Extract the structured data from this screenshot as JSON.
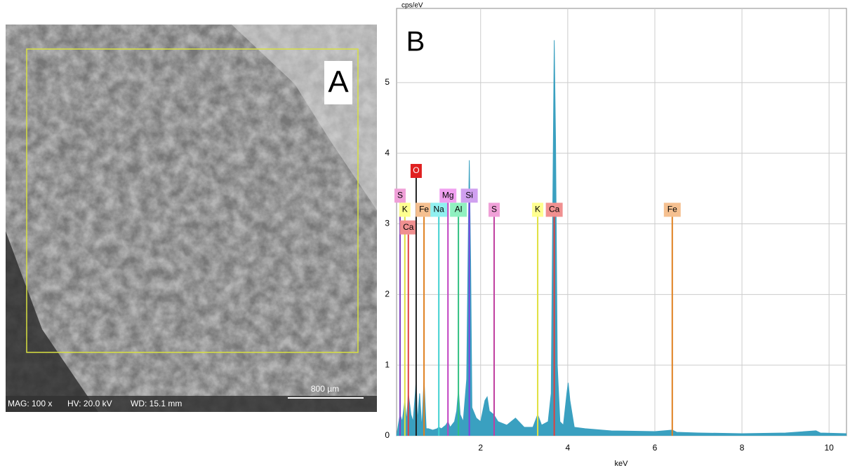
{
  "panel_a": {
    "label": "A",
    "mag": "MAG: 100 x",
    "hv": "HV: 20.0 kV",
    "wd": "WD: 15.1 mm",
    "scale": "800 µm"
  },
  "chart_data": {
    "type": "area",
    "panel_label": "B",
    "y_label": "cps/eV",
    "x_label": "keV",
    "xlim": [
      0.07,
      10.4
    ],
    "ylim": [
      0,
      6.05
    ],
    "xticks": [
      2,
      4,
      6,
      8,
      10
    ],
    "yticks": [
      0,
      1,
      2,
      3,
      4,
      5
    ],
    "grid": true,
    "series": [
      {
        "color": "#3aa0c0",
        "x": [
          0.07,
          0.15,
          0.2,
          0.26,
          0.3,
          0.34,
          0.4,
          0.45,
          0.5,
          0.52,
          0.55,
          0.6,
          0.65,
          0.7,
          0.75,
          0.8,
          0.9,
          1.0,
          1.04,
          1.1,
          1.2,
          1.25,
          1.3,
          1.4,
          1.45,
          1.49,
          1.53,
          1.6,
          1.68,
          1.72,
          1.74,
          1.77,
          1.8,
          1.9,
          2.0,
          2.1,
          2.15,
          2.2,
          2.3,
          2.4,
          2.6,
          2.8,
          3.0,
          3.2,
          3.31,
          3.4,
          3.55,
          3.62,
          3.66,
          3.69,
          3.72,
          3.76,
          3.82,
          3.9,
          3.98,
          4.01,
          4.05,
          4.15,
          4.4,
          5.0,
          6.0,
          6.4,
          6.5,
          7.0,
          8.0,
          9.0,
          9.7,
          9.8,
          10.4
        ],
        "values": [
          0.0,
          0.3,
          0.2,
          0.5,
          0.2,
          0.6,
          0.3,
          0.2,
          0.6,
          0.8,
          0.2,
          0.6,
          0.1,
          0.8,
          0.1,
          0.1,
          0.08,
          0.1,
          0.12,
          0.1,
          0.15,
          0.2,
          0.12,
          0.2,
          0.35,
          0.65,
          0.3,
          0.2,
          0.8,
          3.0,
          3.9,
          2.5,
          0.4,
          0.25,
          0.2,
          0.5,
          0.55,
          0.35,
          0.3,
          0.2,
          0.15,
          0.25,
          0.12,
          0.12,
          0.3,
          0.15,
          0.2,
          0.6,
          3.5,
          5.6,
          4.2,
          1.0,
          0.2,
          0.15,
          0.6,
          0.75,
          0.5,
          0.12,
          0.1,
          0.07,
          0.06,
          0.08,
          0.05,
          0.04,
          0.03,
          0.04,
          0.07,
          0.04,
          0.03
        ]
      }
    ],
    "markers": [
      {
        "label": "S",
        "x": 0.15,
        "height": 3.3,
        "color": "#f0a0d8",
        "line": "#8040c0"
      },
      {
        "label": "K",
        "x": 0.26,
        "height": 3.1,
        "color": "#ffff90",
        "line": "#e0e040"
      },
      {
        "label": "Ca",
        "x": 0.34,
        "height": 2.85,
        "color": "#f09090",
        "line": "#e04040"
      },
      {
        "label": "O",
        "x": 0.52,
        "height": 3.65,
        "color": "#e02020",
        "line": "#202020"
      },
      {
        "label": "Fe",
        "x": 0.7,
        "height": 3.1,
        "color": "#f5c090",
        "line": "#e08020"
      },
      {
        "label": "Na",
        "x": 1.04,
        "height": 3.1,
        "color": "#90f0f0",
        "line": "#40d0d0"
      },
      {
        "label": "Mg",
        "x": 1.25,
        "height": 3.3,
        "color": "#f0a0f0",
        "line": "#c040c0"
      },
      {
        "label": "Al",
        "x": 1.49,
        "height": 3.1,
        "color": "#90f0c0",
        "line": "#30c080"
      },
      {
        "label": "Si",
        "x": 1.74,
        "height": 3.3,
        "color": "#d0a0f0",
        "line": "#8040e0"
      },
      {
        "label": "S",
        "x": 2.31,
        "height": 3.1,
        "color": "#f0a0d8",
        "line": "#c040a0"
      },
      {
        "label": "K",
        "x": 3.31,
        "height": 3.1,
        "color": "#ffff90",
        "line": "#e0e040"
      },
      {
        "label": "Ca",
        "x": 3.69,
        "height": 3.1,
        "color": "#f09090",
        "line": "#e04040"
      },
      {
        "label": "Fe",
        "x": 6.4,
        "height": 3.1,
        "color": "#f5c090",
        "line": "#e08020"
      }
    ]
  }
}
